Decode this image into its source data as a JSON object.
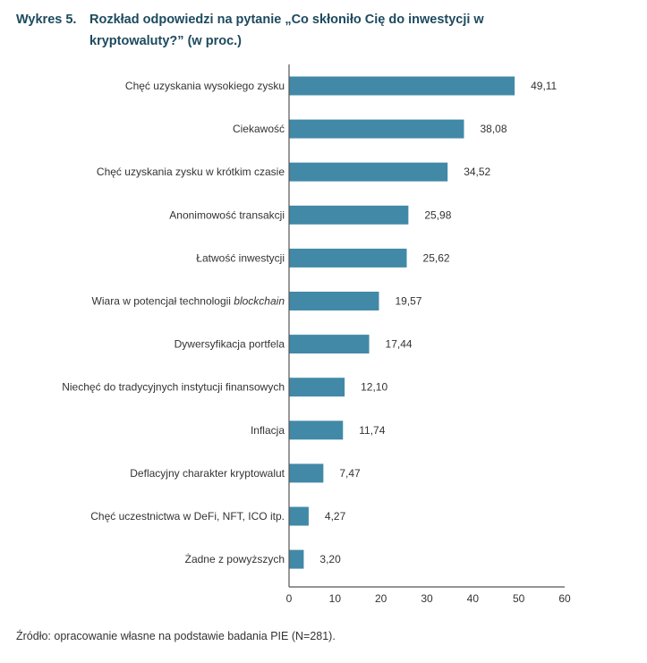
{
  "title": {
    "number": "Wykres 5.",
    "text": "Rozkład odpowiedzi na pytanie „Co skłoniło Cię do inwestycji w kryptowaluty?” (w proc.)"
  },
  "source": "Źródło: opracowanie własne na podstawie badania PIE (N=281).",
  "colors": {
    "bar": "#4289a7",
    "axis": "#555555",
    "title": "#1d4a5e"
  },
  "chart_data": {
    "type": "bar",
    "orientation": "horizontal",
    "title": "Rozkład odpowiedzi na pytanie „Co skłoniło Cię do inwestycji w kryptowaluty?” (w proc.)",
    "xlabel": "",
    "ylabel": "",
    "xlim": [
      0,
      60
    ],
    "xticks": [
      "0",
      "10",
      "20",
      "30",
      "40",
      "50",
      "60"
    ],
    "xtick_values": [
      0,
      10,
      20,
      30,
      40,
      50,
      60
    ],
    "grid": false,
    "categories": [
      "Chęć uzyskania wysokiego zysku",
      "Ciekawość",
      "Chęć uzyskania zysku w krótkim czasie",
      "Anonimowość transakcji",
      "Łatwość inwestycji",
      "Wiara w potencjał technologii blockchain",
      "Dywersyfikacja portfela",
      "Niechęć do tradycyjnych instytucji finansowych",
      "Inflacja",
      "Deflacyjny charakter kryptowalut",
      "Chęć uczestnictwa w DeFi, NFT, ICO itp.",
      "Żadne z powyższych"
    ],
    "category_parts": [
      [
        {
          "t": "Chęć uzyskania wysokiego zysku"
        }
      ],
      [
        {
          "t": "Ciekawość"
        }
      ],
      [
        {
          "t": "Chęć uzyskania zysku w krótkim czasie"
        }
      ],
      [
        {
          "t": "Anonimowość transakcji"
        }
      ],
      [
        {
          "t": "Łatwość inwestycji"
        }
      ],
      [
        {
          "t": "Wiara w potencjał technologii "
        },
        {
          "t": "blockchain",
          "i": true
        }
      ],
      [
        {
          "t": "Dywersyfikacja portfela"
        }
      ],
      [
        {
          "t": "Niechęć do tradycyjnych instytucji finansowych"
        }
      ],
      [
        {
          "t": "Inflacja"
        }
      ],
      [
        {
          "t": "Deflacyjny charakter kryptowalut"
        }
      ],
      [
        {
          "t": "Chęć uczestnictwa w DeFi, NFT, ICO itp."
        }
      ],
      [
        {
          "t": "Żadne z powyższych"
        }
      ]
    ],
    "values": [
      49.11,
      38.08,
      34.52,
      25.98,
      25.62,
      19.57,
      17.44,
      12.1,
      11.74,
      7.47,
      4.27,
      3.2
    ],
    "value_labels": [
      "49,11",
      "38,08",
      "34,52",
      "25,98",
      "25,62",
      "19,57",
      "17,44",
      "12,10",
      "11,74",
      "7,47",
      "4,27",
      "3,20"
    ]
  }
}
